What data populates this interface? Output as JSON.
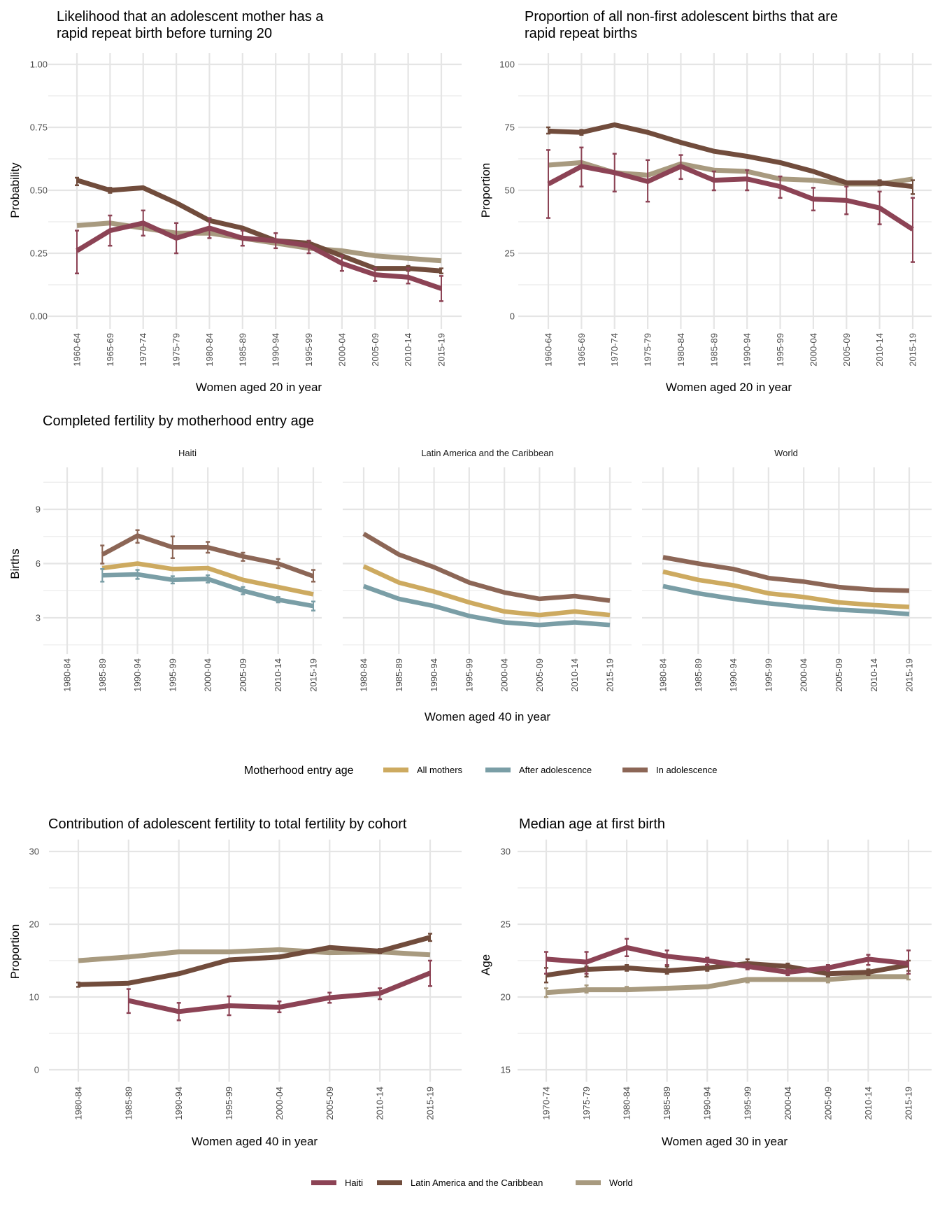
{
  "colors": {
    "Haiti": "#8c4355",
    "Latin America and the Caribbean": "#714c3c",
    "World": "#a89a7f",
    "All mothers": "#cdaa60",
    "After adolescence": "#7a9ea6",
    "In adolescence": "#8c6656"
  },
  "legends": {
    "entry_age": {
      "title": "Motherhood entry age",
      "items": [
        "All mothers",
        "After adolescence",
        "In adolescence"
      ]
    },
    "region": {
      "items": [
        "Haiti",
        "Latin America and the Caribbean",
        "World"
      ]
    }
  },
  "chart_data": [
    {
      "id": "rapid-repeat-likelihood",
      "type": "line",
      "title": "Likelihood that an adolescent mother has a\nrapid repeat birth before turning 20",
      "xlabel": "Women aged 20 in year",
      "ylabel": "Probability",
      "ylim": [
        0,
        1
      ],
      "yticks": [
        "0.00",
        "0.25",
        "0.50",
        "0.75",
        "1.00"
      ],
      "ytick_values": [
        0,
        0.25,
        0.5,
        0.75,
        1.0
      ],
      "grid": true,
      "categories": [
        "1960-64",
        "1965-69",
        "1970-74",
        "1975-79",
        "1980-84",
        "1985-89",
        "1990-94",
        "1995-99",
        "2000-04",
        "2005-09",
        "2010-14",
        "2015-19"
      ],
      "series": [
        {
          "name": "World",
          "values": [
            0.36,
            0.37,
            0.35,
            0.33,
            0.33,
            0.31,
            0.29,
            0.27,
            0.26,
            0.24,
            0.23,
            0.22
          ]
        },
        {
          "name": "Latin America and the Caribbean",
          "values": [
            0.54,
            0.5,
            0.51,
            0.45,
            0.38,
            0.35,
            0.3,
            0.29,
            0.24,
            0.19,
            0.19,
            0.18
          ],
          "ci_low": [
            0.52,
            0.49,
            null,
            null,
            null,
            null,
            null,
            null,
            null,
            null,
            0.18,
            0.17
          ],
          "ci_high": [
            0.55,
            0.51,
            null,
            null,
            null,
            null,
            null,
            null,
            null,
            null,
            0.2,
            0.19
          ]
        },
        {
          "name": "Haiti",
          "values": [
            0.26,
            0.34,
            0.37,
            0.31,
            0.35,
            0.31,
            0.3,
            0.28,
            0.21,
            0.165,
            0.155,
            0.11
          ],
          "ci_low": [
            0.17,
            0.28,
            0.32,
            0.25,
            0.31,
            0.28,
            0.27,
            0.25,
            0.18,
            0.14,
            0.13,
            0.06
          ],
          "ci_high": [
            0.34,
            0.4,
            0.42,
            0.37,
            0.39,
            0.34,
            0.33,
            0.3,
            0.24,
            0.19,
            0.19,
            0.16
          ]
        }
      ]
    },
    {
      "id": "rapid-repeat-proportion",
      "type": "line",
      "title": "Proportion of all non-first adolescent births that are\nrapid repeat births",
      "xlabel": "Women aged 20 in year",
      "ylabel": "Proportion",
      "ylim": [
        0,
        100
      ],
      "yticks": [
        "0",
        "25",
        "50",
        "75",
        "100"
      ],
      "ytick_values": [
        0,
        25,
        50,
        75,
        100
      ],
      "grid": true,
      "categories": [
        "1960-64",
        "1965-69",
        "1970-74",
        "1975-79",
        "1980-84",
        "1985-89",
        "1990-94",
        "1995-99",
        "2000-04",
        "2005-09",
        "2010-14",
        "2015-19"
      ],
      "series": [
        {
          "name": "World",
          "values": [
            60,
            61,
            57,
            56,
            60.5,
            58,
            57.5,
            54.5,
            54,
            52.5,
            52.5,
            54.5
          ]
        },
        {
          "name": "Latin America and the Caribbean",
          "values": [
            73.5,
            73,
            76,
            73,
            69,
            65.5,
            63.5,
            61,
            57.5,
            53,
            53,
            51.5
          ],
          "ci_low": [
            72.5,
            72,
            null,
            null,
            null,
            null,
            null,
            null,
            null,
            null,
            52,
            48.5
          ],
          "ci_high": [
            75,
            74,
            null,
            null,
            null,
            null,
            null,
            null,
            null,
            null,
            54,
            54
          ]
        },
        {
          "name": "Haiti",
          "values": [
            52.5,
            59.5,
            57,
            53.5,
            59.5,
            54,
            54.5,
            51.5,
            46.5,
            46,
            43,
            34.5
          ],
          "ci_low": [
            39,
            51.5,
            49.5,
            45.5,
            54.5,
            50,
            50,
            47,
            42,
            40.5,
            36.5,
            21.5
          ],
          "ci_high": [
            66,
            67,
            64.5,
            62,
            64,
            57.5,
            58,
            55.5,
            51,
            51.5,
            49.5,
            47
          ]
        }
      ]
    },
    {
      "id": "completed-fertility",
      "type": "line",
      "title": "Completed fertility by motherhood entry age",
      "xlabel": "Women aged 40 in year",
      "ylabel": "Births",
      "ylim": [
        1.5,
        11.5
      ],
      "yticks": [
        "3",
        "6",
        "9"
      ],
      "ytick_values": [
        3,
        6,
        9
      ],
      "grid": true,
      "legend": "bottom",
      "categories": [
        "1980-84",
        "1985-89",
        "1990-94",
        "1995-99",
        "2000-04",
        "2005-09",
        "2010-14",
        "2015-19"
      ],
      "facets": [
        {
          "name": "Haiti",
          "series": [
            {
              "name": "All mothers",
              "values": [
                null,
                5.75,
                6.0,
                5.7,
                5.75,
                5.1,
                4.7,
                4.3
              ]
            },
            {
              "name": "After adolescence",
              "values": [
                null,
                5.35,
                5.4,
                5.1,
                5.15,
                4.5,
                4.0,
                3.65
              ],
              "ci_low": [
                null,
                5.0,
                5.15,
                4.9,
                4.95,
                4.3,
                3.85,
                3.4
              ],
              "ci_high": [
                null,
                5.7,
                5.65,
                5.3,
                5.35,
                4.7,
                4.15,
                3.9
              ]
            },
            {
              "name": "In adolescence",
              "values": [
                null,
                6.5,
                7.55,
                6.9,
                6.9,
                6.4,
                6.0,
                5.3
              ],
              "ci_low": [
                null,
                6.0,
                7.15,
                6.3,
                6.6,
                6.15,
                5.75,
                5.0
              ],
              "ci_high": [
                null,
                7.0,
                7.85,
                7.5,
                7.2,
                6.6,
                6.25,
                5.65
              ]
            }
          ]
        },
        {
          "name": "Latin America and the Caribbean",
          "series": [
            {
              "name": "All mothers",
              "values": [
                5.85,
                4.95,
                4.45,
                3.85,
                3.35,
                3.15,
                3.35,
                3.15
              ]
            },
            {
              "name": "After adolescence",
              "values": [
                4.75,
                4.05,
                3.65,
                3.1,
                2.75,
                2.6,
                2.75,
                2.6
              ]
            },
            {
              "name": "In adolescence",
              "values": [
                7.65,
                6.5,
                5.8,
                4.95,
                4.4,
                4.05,
                4.2,
                3.95
              ]
            }
          ]
        },
        {
          "name": "World",
          "series": [
            {
              "name": "All mothers",
              "values": [
                5.55,
                5.1,
                4.8,
                4.35,
                4.15,
                3.85,
                3.7,
                3.6
              ]
            },
            {
              "name": "After adolescence",
              "values": [
                4.75,
                4.35,
                4.05,
                3.8,
                3.6,
                3.45,
                3.35,
                3.2
              ]
            },
            {
              "name": "In adolescence",
              "values": [
                6.35,
                6.0,
                5.7,
                5.2,
                5.0,
                4.7,
                4.55,
                4.5
              ]
            }
          ]
        }
      ]
    },
    {
      "id": "adolescent-contribution",
      "type": "line",
      "title": "Contribution of adolescent fertility to total fertility by cohort",
      "xlabel": "Women aged 40 in year",
      "ylabel": "Proportion",
      "ylim": [
        0,
        30
      ],
      "yticks": [
        "0",
        "10",
        "20",
        "30"
      ],
      "ytick_values": [
        0,
        10,
        20,
        30
      ],
      "grid": true,
      "categories": [
        "1980-84",
        "1985-89",
        "1990-94",
        "1995-99",
        "2000-04",
        "2005-09",
        "2010-14",
        "2015-19"
      ],
      "series": [
        {
          "name": "World",
          "values": [
            15.0,
            15.5,
            16.2,
            16.2,
            16.5,
            16.1,
            16.2,
            15.8
          ]
        },
        {
          "name": "Latin America and the Caribbean",
          "values": [
            11.7,
            11.9,
            13.2,
            15.1,
            15.5,
            16.8,
            16.3,
            18.2
          ],
          "ci_low": [
            11.4,
            null,
            null,
            null,
            null,
            null,
            16.0,
            17.7
          ],
          "ci_high": [
            12.0,
            null,
            null,
            null,
            null,
            null,
            16.6,
            18.7
          ]
        },
        {
          "name": "Haiti",
          "values": [
            null,
            9.5,
            8.0,
            8.8,
            8.6,
            9.9,
            10.5,
            13.3
          ],
          "ci_low": [
            null,
            7.8,
            6.8,
            7.5,
            7.9,
            9.2,
            9.7,
            11.5
          ],
          "ci_high": [
            null,
            11.1,
            9.2,
            10.1,
            9.4,
            10.6,
            11.2,
            15.0
          ]
        }
      ]
    },
    {
      "id": "median-age-first-birth",
      "type": "line",
      "title": "Median age at first birth",
      "xlabel": "Women aged 30 in year",
      "ylabel": "Age",
      "ylim": [
        15,
        30
      ],
      "yticks": [
        "15",
        "20",
        "25",
        "30"
      ],
      "ytick_values": [
        15,
        20,
        25,
        30
      ],
      "grid": true,
      "legend": "bottom",
      "categories": [
        "1970-74",
        "1975-79",
        "1980-84",
        "1985-89",
        "1990-94",
        "1995-99",
        "2000-04",
        "2005-09",
        "2010-14",
        "2015-19"
      ],
      "series": [
        {
          "name": "World",
          "values": [
            20.3,
            20.5,
            20.5,
            20.6,
            20.7,
            21.2,
            21.2,
            21.2,
            21.4,
            21.4
          ],
          "ci_low": [
            20.0,
            20.3,
            20.4,
            20.5,
            20.6,
            21.0,
            21.1,
            21.0,
            21.3,
            21.2
          ],
          "ci_high": [
            20.6,
            20.8,
            20.7,
            20.7,
            20.8,
            21.3,
            21.3,
            21.4,
            21.6,
            21.6
          ]
        },
        {
          "name": "Latin America and the Caribbean",
          "values": [
            21.5,
            21.9,
            22.0,
            21.8,
            22.0,
            22.3,
            22.1,
            21.6,
            21.7,
            22.2
          ],
          "ci_low": [
            21.0,
            21.4,
            21.8,
            21.6,
            21.8,
            22.1,
            21.9,
            21.4,
            21.5,
            21.8
          ],
          "ci_high": [
            22.0,
            22.1,
            22.2,
            22.1,
            22.2,
            22.6,
            22.3,
            21.8,
            21.9,
            22.5
          ]
        },
        {
          "name": "Haiti",
          "values": [
            22.6,
            22.4,
            23.4,
            22.8,
            22.5,
            22.1,
            21.7,
            22.0,
            22.6,
            22.3
          ],
          "ci_low": [
            21.6,
            21.6,
            22.8,
            22.2,
            22.2,
            21.9,
            21.5,
            21.8,
            22.2,
            21.6
          ],
          "ci_high": [
            23.1,
            23.1,
            24.0,
            23.2,
            22.7,
            22.3,
            21.9,
            22.2,
            22.9,
            23.2
          ]
        }
      ]
    }
  ]
}
